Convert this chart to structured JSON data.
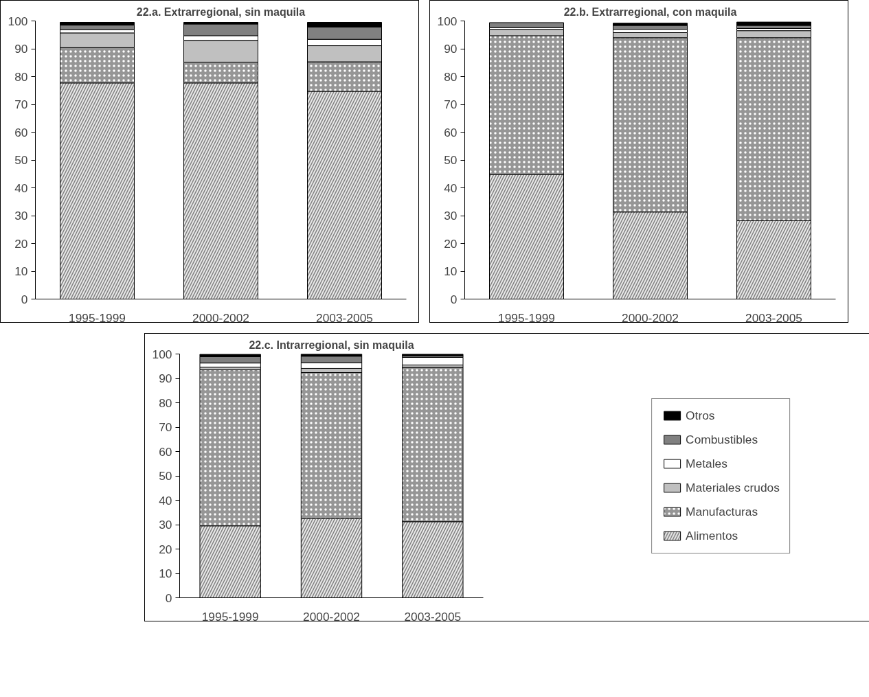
{
  "chart_data": [
    {
      "type": "bar",
      "title": "22.a. Extrarregional, sin maquila",
      "categories": [
        "1995-1999",
        "2000-2002",
        "2003-2005"
      ],
      "stacked": true,
      "ylim": [
        0,
        100
      ],
      "yticks": [
        0,
        10,
        20,
        30,
        40,
        50,
        60,
        70,
        80,
        90,
        100
      ],
      "grid": false,
      "legend": false,
      "series": [
        {
          "color": "#e8e8e8",
          "values": [
            77.7,
            77.7,
            74.7
          ]
        },
        {
          "color": "#969696",
          "values": [
            12.7,
            7.5,
            10.6
          ]
        },
        {
          "color": "#c0c0c0",
          "values": [
            5.3,
            7.8,
            5.8
          ]
        },
        {
          "color": "#ffffff",
          "values": [
            1.1,
            1.7,
            2.3
          ]
        },
        {
          "color": "#808080",
          "values": [
            1.7,
            4.2,
            4.4
          ]
        },
        {
          "color": "#000000",
          "values": [
            1.0,
            0.6,
            1.7
          ]
        }
      ]
    },
    {
      "type": "bar",
      "title": "22.b. Extrarregional, con maquila",
      "categories": [
        "1995-1999",
        "2000-2002",
        "2003-2005"
      ],
      "stacked": true,
      "ylim": [
        0,
        100
      ],
      "yticks": [
        0,
        10,
        20,
        30,
        40,
        50,
        60,
        70,
        80,
        90,
        100
      ],
      "grid": false,
      "legend": false,
      "series": [
        {
          "color": "#e8e8e8",
          "values": [
            44.8,
            31.3,
            28.2
          ]
        },
        {
          "color": "#969696",
          "values": [
            49.9,
            62.7,
            65.8
          ]
        },
        {
          "color": "#c0c0c0",
          "values": [
            2.3,
            1.8,
            2.5
          ]
        },
        {
          "color": "#ffffff",
          "values": [
            0.6,
            1.2,
            0.8
          ]
        },
        {
          "color": "#808080",
          "values": [
            1.8,
            1.4,
            1.1
          ]
        },
        {
          "color": "#000000",
          "values": [
            null,
            0.8,
            1.2
          ]
        }
      ]
    },
    {
      "type": "bar",
      "title": "22.c. Intrarregional, sin maquila",
      "categories": [
        "1995-1999",
        "2000-2002",
        "2003-2005"
      ],
      "stacked": true,
      "ylim": [
        0,
        100
      ],
      "yticks": [
        0,
        10,
        20,
        30,
        40,
        50,
        60,
        70,
        80,
        90,
        100
      ],
      "grid": false,
      "legend": "right",
      "series": [
        {
          "name": "Alimentos",
          "color": "#e8e8e8",
          "values": [
            29.5,
            32.4,
            31.2
          ]
        },
        {
          "name": "Manufacturas",
          "color": "#969696",
          "values": [
            64.0,
            60.0,
            63.3
          ]
        },
        {
          "name": "Materiales crudos",
          "color": "#c0c0c0",
          "values": [
            1.1,
            1.7,
            1.0
          ]
        },
        {
          "name": "Metales",
          "color": "#ffffff",
          "values": [
            1.7,
            2.3,
            3.1
          ]
        },
        {
          "name": "Combustibles",
          "color": "#808080",
          "values": [
            2.6,
            2.7,
            0.7
          ]
        },
        {
          "name": "Otros",
          "color": "#000000",
          "values": [
            1.0,
            0.9,
            0.7
          ]
        }
      ]
    }
  ]
}
